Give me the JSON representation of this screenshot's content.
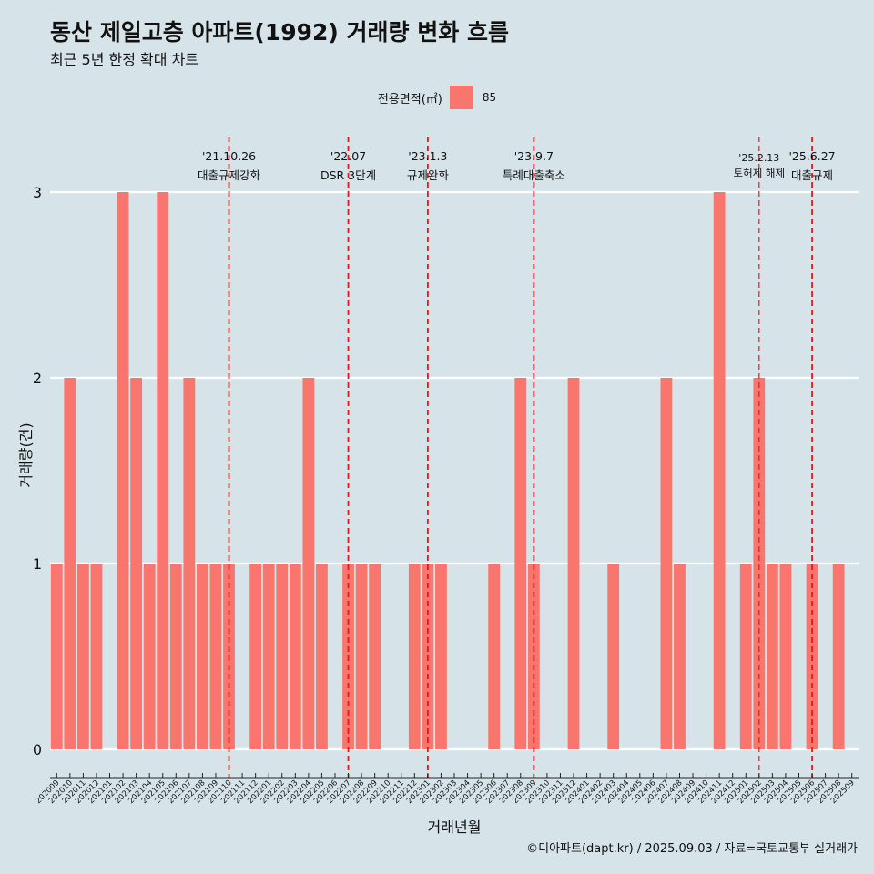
{
  "title": "동산 제일고층 아파트(1992) 거래량 변화 흐름",
  "subtitle": "최근 5년 한정 확대 차트",
  "caption": "©디아파트(dapt.kr) / 2025.09.03 / 자료=국토교통부 실거래가",
  "legend": {
    "title": "전용면적(㎡)",
    "entries": [
      {
        "label": "85",
        "color": "#f8766d"
      }
    ]
  },
  "colors": {
    "background": "#d6e4ea",
    "bar": "#f8766d",
    "event_line": "#e31a1c",
    "grid": "#ffffff"
  },
  "chart_data": {
    "type": "bar",
    "xlabel": "거래년월",
    "ylabel": "거래량(건)",
    "ylim": [
      0,
      3
    ],
    "y_ticks": [
      0,
      1,
      2,
      3
    ],
    "grid": true,
    "legend_position": "top",
    "categories": [
      "202009",
      "202010",
      "202011",
      "202012",
      "202101",
      "202102",
      "202103",
      "202104",
      "202105",
      "202106",
      "202107",
      "202108",
      "202109",
      "202110",
      "202111",
      "202112",
      "202201",
      "202202",
      "202203",
      "202204",
      "202205",
      "202206",
      "202207",
      "202208",
      "202209",
      "202210",
      "202211",
      "202212",
      "202301",
      "202302",
      "202303",
      "202304",
      "202305",
      "202306",
      "202307",
      "202308",
      "202309",
      "202310",
      "202311",
      "202312",
      "202401",
      "202402",
      "202403",
      "202404",
      "202405",
      "202406",
      "202407",
      "202408",
      "202409",
      "202410",
      "202411",
      "202412",
      "202501",
      "202502",
      "202503",
      "202504",
      "202505",
      "202506",
      "202507",
      "202508",
      "202509"
    ],
    "series": [
      {
        "name": "85",
        "values": [
          1,
          2,
          1,
          1,
          0,
          3,
          2,
          1,
          3,
          1,
          2,
          1,
          1,
          1,
          0,
          1,
          1,
          1,
          1,
          2,
          1,
          0,
          1,
          1,
          1,
          0,
          0,
          1,
          1,
          1,
          0,
          0,
          0,
          1,
          0,
          2,
          1,
          0,
          0,
          2,
          0,
          0,
          1,
          0,
          0,
          0,
          2,
          1,
          0,
          0,
          3,
          0,
          1,
          2,
          1,
          1,
          0,
          1,
          0,
          1,
          0
        ]
      }
    ],
    "events": [
      {
        "date": "'21.10.26",
        "label": "대출규제강화",
        "at": 13,
        "style": "dashed"
      },
      {
        "date": "'22.07",
        "label": "DSR 3단계",
        "at": 22,
        "style": "dashed"
      },
      {
        "date": "'23.1.3",
        "label": "규제완화",
        "at": 28,
        "style": "dashed"
      },
      {
        "date": "'23.9.7",
        "label": "특례대출축소",
        "at": 36,
        "style": "dashed"
      },
      {
        "date": "'25.2.13",
        "label": "토허제 해제",
        "at": 53,
        "style": "dashed-thin"
      },
      {
        "date": "'25.6.27",
        "label": "대출규제",
        "at": 57,
        "style": "dashed"
      }
    ]
  }
}
